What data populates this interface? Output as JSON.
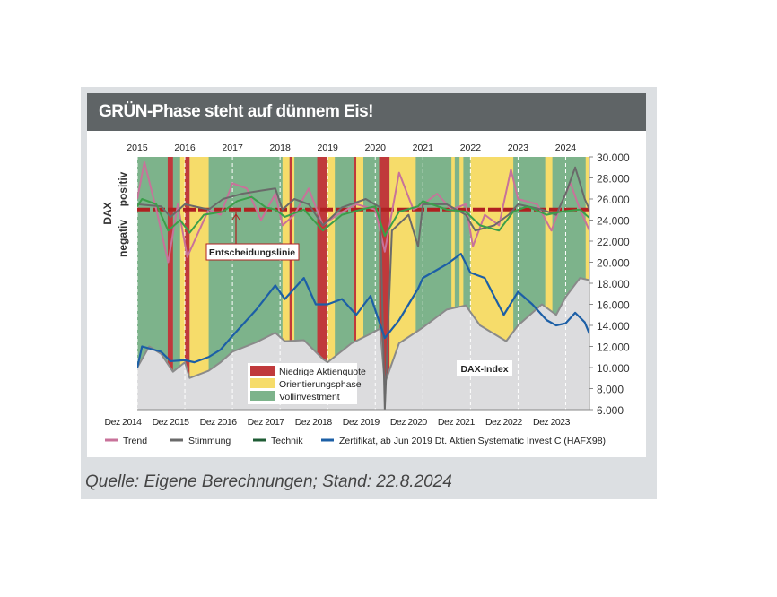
{
  "title": "GRÜN-Phase steht auf dünnem Eis!",
  "source": "Quelle: Eigene Berechnungen; Stand: 22.8.2024",
  "colors": {
    "green": "#7db38b",
    "yellow": "#f6dc6a",
    "red": "#c0393b",
    "dax_area": "#dcdcde",
    "dax_line": "#8a8a8a",
    "blue": "#1c5fa6",
    "trend": "#c8729a",
    "stimmung": "#6a6a6a",
    "technik": "#3b9f4a",
    "technik_legend": "#1f5c35",
    "decision": "#b02020"
  },
  "chart_data": {
    "type": "line",
    "title": "GRÜN-Phase steht auf dünnem Eis!",
    "ylabel_left": "DAX",
    "ylabel_positive": "positiv",
    "ylabel_negative": "negativ",
    "xlim": [
      2015,
      2024.5
    ],
    "ylim": [
      6000,
      30000
    ],
    "top_ticks": [
      "2015",
      "2016",
      "2017",
      "2018",
      "2019",
      "2020",
      "2021",
      "2022",
      "2023",
      "2024"
    ],
    "bottom_ticks": [
      "Dez 2014",
      "Dez 2015",
      "Dez 2016",
      "Dez 2017",
      "Dez 2018",
      "Dez 2019",
      "Dez 2020",
      "Dez 2021",
      "Dez 2022",
      "Dez 2023"
    ],
    "y_ticks": [
      "6.000",
      "8.000",
      "10.000",
      "12.000",
      "14.000",
      "16.000",
      "18.000",
      "20.000",
      "22.000",
      "24.000",
      "26.000",
      "28.000",
      "30.000"
    ],
    "y_tick_values": [
      6000,
      8000,
      10000,
      12000,
      14000,
      16000,
      18000,
      20000,
      22000,
      24000,
      26000,
      28000,
      30000
    ],
    "decision_line": {
      "label": "Entscheidungslinie",
      "value": 25000
    },
    "dax_label": "DAX-Index",
    "phases": [
      {
        "phase": "red",
        "from": 2015.64,
        "to": 2015.75
      },
      {
        "phase": "yellow",
        "from": 2015.9,
        "to": 2016.0
      },
      {
        "phase": "red",
        "from": 2016.0,
        "to": 2016.1
      },
      {
        "phase": "yellow",
        "from": 2016.1,
        "to": 2016.5
      },
      {
        "phase": "yellow",
        "from": 2018.05,
        "to": 2018.2
      },
      {
        "phase": "red",
        "from": 2018.2,
        "to": 2018.26
      },
      {
        "phase": "yellow",
        "from": 2018.26,
        "to": 2018.3
      },
      {
        "phase": "red",
        "from": 2018.78,
        "to": 2019.0
      },
      {
        "phase": "yellow",
        "from": 2019.0,
        "to": 2019.15
      },
      {
        "phase": "red",
        "from": 2019.55,
        "to": 2019.6
      },
      {
        "phase": "yellow",
        "from": 2019.6,
        "to": 2019.75
      },
      {
        "phase": "red",
        "from": 2020.08,
        "to": 2020.3
      },
      {
        "phase": "yellow",
        "from": 2020.3,
        "to": 2020.85
      },
      {
        "phase": "yellow",
        "from": 2021.6,
        "to": 2021.67
      },
      {
        "phase": "yellow",
        "from": 2021.77,
        "to": 2021.85
      },
      {
        "phase": "yellow",
        "from": 2022.0,
        "to": 2022.9
      },
      {
        "phase": "yellow",
        "from": 2023.57,
        "to": 2023.72
      },
      {
        "phase": "yellow",
        "from": 2024.42,
        "to": 2024.5
      }
    ],
    "phase_legend": [
      {
        "phase": "red",
        "label": "Niedrige Aktienquote"
      },
      {
        "phase": "yellow",
        "label": "Orientierungsphase"
      },
      {
        "phase": "green",
        "label": "Vollinvestment"
      }
    ],
    "series": [
      {
        "name": "DAX-Index",
        "key": "dax",
        "x": [
          2015,
          2015.25,
          2015.5,
          2015.75,
          2016,
          2016.1,
          2016.5,
          2016.75,
          2017,
          2017.5,
          2017.9,
          2018.1,
          2018.5,
          2018.9,
          2019,
          2019.5,
          2019.9,
          2020.1,
          2020.2,
          2020.5,
          2020.9,
          2021,
          2021.5,
          2021.9,
          2022.2,
          2022.75,
          2023,
          2023.5,
          2023.8,
          2024,
          2024.3,
          2024.5
        ],
        "y": [
          10000,
          12000,
          11300,
          9600,
          10500,
          9000,
          9700,
          10500,
          11500,
          12400,
          13300,
          12500,
          12600,
          10800,
          10500,
          12300,
          13200,
          13700,
          8500,
          12300,
          13500,
          13800,
          15500,
          15900,
          14000,
          12500,
          14000,
          16000,
          15000,
          16700,
          18500,
          18300
        ]
      },
      {
        "name": "Zertifikat, ab Jun 2019 Dt. Aktien Systematic Invest C (HAFX98)",
        "key": "blue",
        "x": [
          2015,
          2015.1,
          2015.5,
          2015.7,
          2016,
          2016.2,
          2016.5,
          2016.75,
          2017,
          2017.5,
          2017.9,
          2018.1,
          2018.5,
          2018.75,
          2019,
          2019.3,
          2019.6,
          2019.9,
          2020.2,
          2020.5,
          2020.9,
          2021,
          2021.5,
          2021.8,
          2022,
          2022.3,
          2022.7,
          2023,
          2023.3,
          2023.6,
          2023.8,
          2024,
          2024.2,
          2024.4,
          2024.5
        ],
        "y": [
          10000,
          12000,
          11500,
          10600,
          10700,
          10500,
          11000,
          11700,
          13000,
          15500,
          17800,
          16500,
          18500,
          16000,
          16000,
          16500,
          15000,
          16800,
          12800,
          14500,
          17500,
          18500,
          19800,
          20800,
          19000,
          18500,
          15000,
          17200,
          16000,
          14500,
          14000,
          14200,
          15200,
          14300,
          13200
        ]
      },
      {
        "name": "Trend",
        "key": "trend",
        "x": [
          2015,
          2015.15,
          2015.4,
          2015.65,
          2015.85,
          2016.05,
          2016.3,
          2016.5,
          2016.75,
          2017,
          2017.3,
          2017.6,
          2017.9,
          2018.05,
          2018.3,
          2018.6,
          2018.9,
          2019.2,
          2019.6,
          2020,
          2020.2,
          2020.5,
          2020.8,
          2021,
          2021.3,
          2021.6,
          2021.9,
          2022.05,
          2022.3,
          2022.6,
          2022.85,
          2023,
          2023.4,
          2023.7,
          2023.9,
          2024.1,
          2024.3,
          2024.5
        ],
        "y": [
          26000,
          29500,
          25000,
          20000,
          25500,
          20500,
          23000,
          25000,
          24500,
          27500,
          27000,
          24000,
          26500,
          23500,
          24500,
          27000,
          23500,
          24500,
          25500,
          25000,
          21000,
          28500,
          25000,
          25500,
          26500,
          25000,
          25500,
          21500,
          24500,
          23500,
          28800,
          26000,
          25500,
          23000,
          25500,
          27500,
          25000,
          23000
        ]
      },
      {
        "name": "Stimmung",
        "key": "stimmung",
        "x": [
          2015,
          2015.5,
          2015.7,
          2016,
          2016.5,
          2016.8,
          2017.2,
          2017.6,
          2017.9,
          2018.05,
          2018.3,
          2018.6,
          2018.9,
          2019.3,
          2019.8,
          2020.1,
          2020.2,
          2020.35,
          2020.7,
          2020.9,
          2021,
          2021.5,
          2021.9,
          2022.1,
          2022.5,
          2022.8,
          2023,
          2023.5,
          2023.8,
          2024,
          2024.2,
          2024.4,
          2024.5
        ],
        "y": [
          25500,
          25300,
          24300,
          25500,
          25000,
          26000,
          26500,
          26800,
          27000,
          25000,
          26000,
          25500,
          23500,
          25200,
          26000,
          25200,
          6000,
          23000,
          24500,
          21500,
          25500,
          25500,
          24500,
          23000,
          23500,
          24500,
          25500,
          25000,
          24500,
          26500,
          29000,
          26000,
          25000
        ]
      },
      {
        "name": "Technik",
        "key": "technik",
        "x": [
          2015,
          2015.1,
          2015.4,
          2015.65,
          2015.9,
          2016.1,
          2016.4,
          2016.8,
          2017.1,
          2017.4,
          2017.7,
          2017.9,
          2018.1,
          2018.5,
          2018.9,
          2019.3,
          2019.7,
          2020,
          2020.2,
          2020.5,
          2020.9,
          2021,
          2021.5,
          2021.9,
          2022.2,
          2022.6,
          2022.9,
          2023.2,
          2023.6,
          2023.9,
          2024.3,
          2024.5
        ],
        "y": [
          25300,
          26000,
          25500,
          23000,
          24000,
          22800,
          24500,
          24800,
          25800,
          26200,
          25200,
          25000,
          24300,
          25000,
          23000,
          24500,
          25000,
          25300,
          22500,
          24800,
          25300,
          25800,
          25000,
          24800,
          23500,
          23000,
          24800,
          25300,
          24500,
          24800,
          25000,
          24200
        ]
      }
    ],
    "legend": [
      "Trend",
      "Stimmung",
      "Technik",
      "Zertifikat, ab Jun 2019 Dt. Aktien Systematic Invest C (HAFX98)"
    ]
  }
}
